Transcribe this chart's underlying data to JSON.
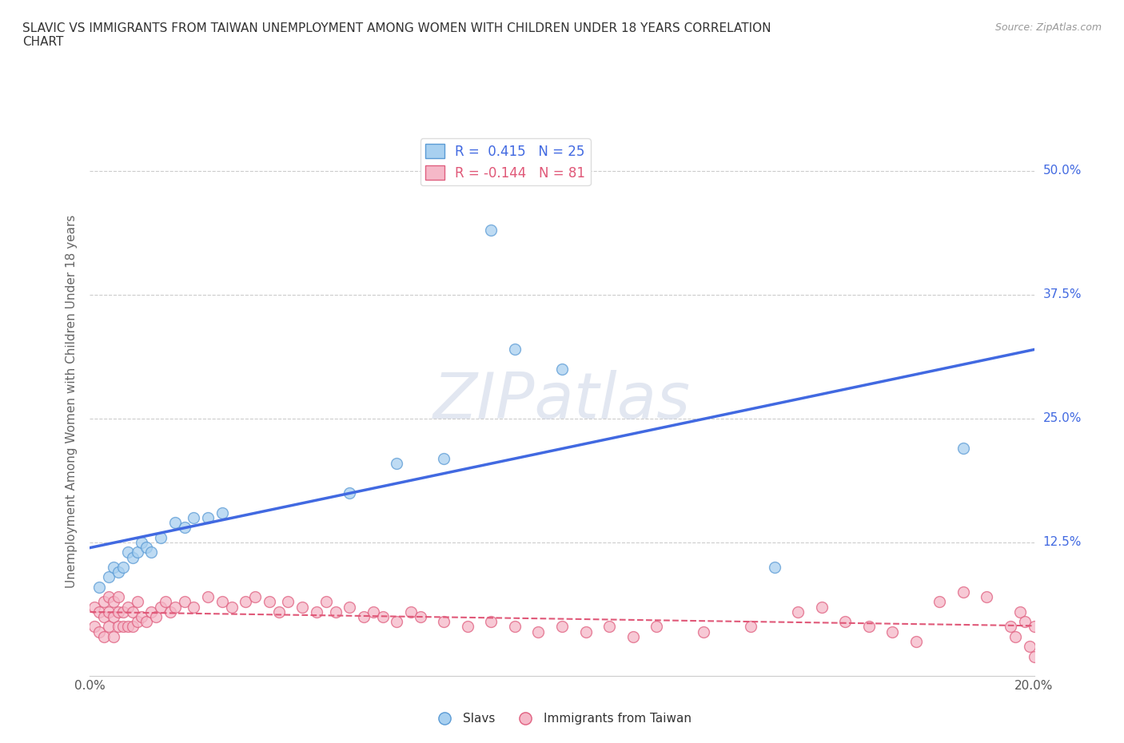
{
  "title": "SLAVIC VS IMMIGRANTS FROM TAIWAN UNEMPLOYMENT AMONG WOMEN WITH CHILDREN UNDER 18 YEARS CORRELATION\nCHART",
  "source": "Source: ZipAtlas.com",
  "ylabel": "Unemployment Among Women with Children Under 18 years",
  "xlim": [
    0.0,
    0.2
  ],
  "ylim": [
    -0.01,
    0.545
  ],
  "yticks": [
    0.0,
    0.125,
    0.25,
    0.375,
    0.5
  ],
  "xticks": [
    0.0,
    0.05,
    0.1,
    0.15,
    0.2
  ],
  "slavs_R": 0.415,
  "slavs_N": 25,
  "taiwan_R": -0.144,
  "taiwan_N": 81,
  "slav_color": "#a8d0f0",
  "taiwan_color": "#f5b8c8",
  "slav_edge_color": "#5b9bd5",
  "taiwan_edge_color": "#e06080",
  "slav_line_color": "#4169e1",
  "taiwan_line_color": "#e05878",
  "watermark": "ZIPatlas",
  "background_color": "#FFFFFF",
  "slavs_x": [
    0.002,
    0.004,
    0.005,
    0.006,
    0.007,
    0.008,
    0.009,
    0.01,
    0.011,
    0.012,
    0.013,
    0.015,
    0.018,
    0.02,
    0.022,
    0.025,
    0.028,
    0.055,
    0.065,
    0.075,
    0.085,
    0.09,
    0.1,
    0.145,
    0.185
  ],
  "slavs_y": [
    0.08,
    0.09,
    0.1,
    0.095,
    0.1,
    0.115,
    0.11,
    0.115,
    0.125,
    0.12,
    0.115,
    0.13,
    0.145,
    0.14,
    0.15,
    0.15,
    0.155,
    0.175,
    0.205,
    0.21,
    0.44,
    0.32,
    0.3,
    0.1,
    0.22
  ],
  "taiwan_x": [
    0.001,
    0.001,
    0.002,
    0.002,
    0.003,
    0.003,
    0.003,
    0.004,
    0.004,
    0.004,
    0.005,
    0.005,
    0.005,
    0.006,
    0.006,
    0.006,
    0.007,
    0.007,
    0.008,
    0.008,
    0.009,
    0.009,
    0.01,
    0.01,
    0.011,
    0.012,
    0.013,
    0.014,
    0.015,
    0.016,
    0.017,
    0.018,
    0.02,
    0.022,
    0.025,
    0.028,
    0.03,
    0.033,
    0.035,
    0.038,
    0.04,
    0.042,
    0.045,
    0.048,
    0.05,
    0.052,
    0.055,
    0.058,
    0.06,
    0.062,
    0.065,
    0.068,
    0.07,
    0.075,
    0.08,
    0.085,
    0.09,
    0.095,
    0.1,
    0.105,
    0.11,
    0.115,
    0.12,
    0.13,
    0.14,
    0.15,
    0.155,
    0.16,
    0.165,
    0.17,
    0.175,
    0.18,
    0.185,
    0.19,
    0.195,
    0.196,
    0.197,
    0.198,
    0.199,
    0.2,
    0.2
  ],
  "taiwan_y": [
    0.04,
    0.06,
    0.035,
    0.055,
    0.03,
    0.05,
    0.065,
    0.04,
    0.055,
    0.07,
    0.03,
    0.05,
    0.065,
    0.04,
    0.055,
    0.07,
    0.04,
    0.055,
    0.04,
    0.06,
    0.04,
    0.055,
    0.045,
    0.065,
    0.05,
    0.045,
    0.055,
    0.05,
    0.06,
    0.065,
    0.055,
    0.06,
    0.065,
    0.06,
    0.07,
    0.065,
    0.06,
    0.065,
    0.07,
    0.065,
    0.055,
    0.065,
    0.06,
    0.055,
    0.065,
    0.055,
    0.06,
    0.05,
    0.055,
    0.05,
    0.045,
    0.055,
    0.05,
    0.045,
    0.04,
    0.045,
    0.04,
    0.035,
    0.04,
    0.035,
    0.04,
    0.03,
    0.04,
    0.035,
    0.04,
    0.055,
    0.06,
    0.045,
    0.04,
    0.035,
    0.025,
    0.065,
    0.075,
    0.07,
    0.04,
    0.03,
    0.055,
    0.045,
    0.02,
    0.04,
    0.01
  ]
}
